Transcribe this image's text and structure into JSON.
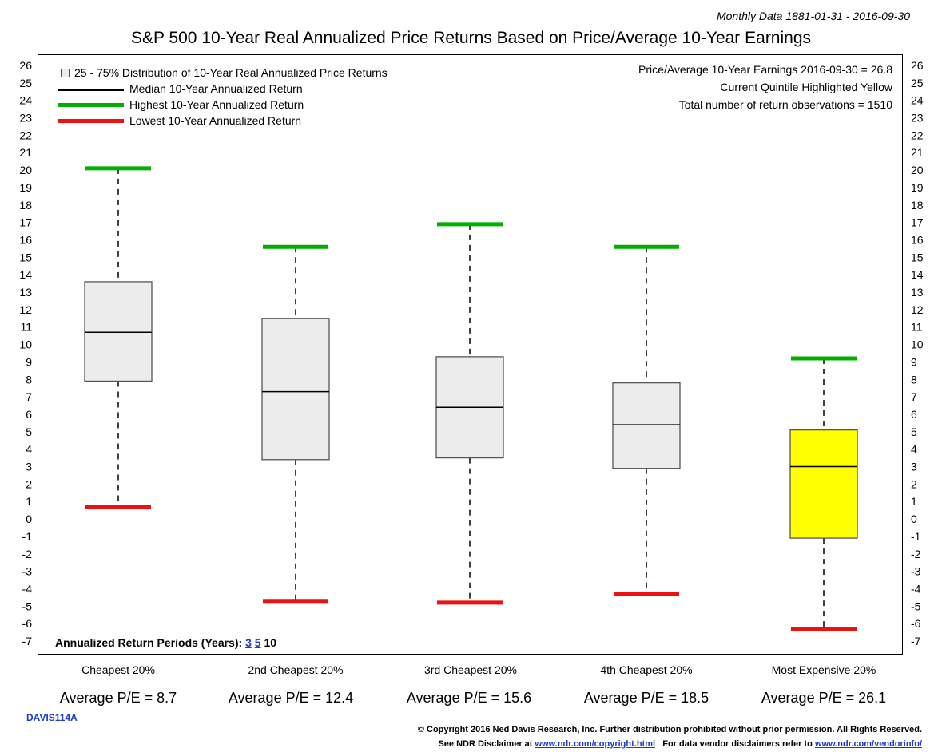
{
  "meta_line": "Monthly Data 1881-01-31 - 2016-09-30",
  "title": "S&P 500 10-Year Real Annualized Price Returns Based on Price/Average 10-Year Earnings",
  "legend": {
    "box": "25 - 75% Distribution of 10-Year Real Annualized Price Returns",
    "median": "Median 10-Year Annualized Return",
    "highest": "Highest 10-Year Annualized Return",
    "lowest": "Lowest 10-Year Annualized Return"
  },
  "info": {
    "line1": "Price/Average 10-Year Earnings 2016-09-30 = 26.8",
    "line2": "Current Quintile Highlighted Yellow",
    "line3": "Total number of return observations = 1510"
  },
  "periods": {
    "label": "Annualized Return Periods (Years):",
    "p3": "3",
    "p5": "5",
    "p10": "10"
  },
  "footer": {
    "code": "DAVIS114A",
    "copyright": "© Copyright 2016 Ned Davis Research, Inc. Further distribution prohibited without prior permission. All Rights Reserved.",
    "disclaimer_prefix": "See NDR Disclaimer at",
    "disclaimer_link": "www.ndr.com/copyright.html",
    "vendor_prefix": "For data vendor disclaimers refer to",
    "vendor_link": "www.ndr.com/vendorinfo/"
  },
  "colors": {
    "box_fill": "#ececec",
    "highlight_fill": "#ffff00",
    "highest": "#00b000",
    "lowest": "#ee1111"
  },
  "chart_data": {
    "type": "box",
    "title": "S&P 500 10-Year Real Annualized Price Returns Based on Price/Average 10-Year Earnings",
    "ylim": [
      -7,
      26
    ],
    "yticks": [
      "26",
      "25",
      "24",
      "23",
      "22",
      "21",
      "20",
      "19",
      "18",
      "17",
      "16",
      "15",
      "14",
      "13",
      "12",
      "11",
      "10",
      "9",
      "8",
      "7",
      "6",
      "5",
      "4",
      "3",
      "2",
      "1",
      "0",
      "-1",
      "-2",
      "-3",
      "-4",
      "-5",
      "-6",
      "-7"
    ],
    "categories": [
      "Cheapest 20%",
      "2nd Cheapest 20%",
      "3rd Cheapest 20%",
      "4th Cheapest 20%",
      "Most Expensive 20%"
    ],
    "pe_labels": [
      "Average P/E = 8.7",
      "Average P/E = 12.4",
      "Average P/E = 15.6",
      "Average P/E = 18.5",
      "Average P/E = 26.1"
    ],
    "high": [
      20.1,
      15.6,
      16.9,
      15.6,
      9.2
    ],
    "q3": [
      13.6,
      11.5,
      9.3,
      7.8,
      5.1
    ],
    "median": [
      10.7,
      7.3,
      6.4,
      5.4,
      3.0
    ],
    "q1": [
      7.9,
      3.4,
      3.5,
      2.9,
      -1.1
    ],
    "low": [
      0.7,
      -4.7,
      -4.8,
      -4.3,
      -6.3
    ],
    "highlighted": [
      false,
      false,
      false,
      false,
      true
    ],
    "grid": false
  }
}
